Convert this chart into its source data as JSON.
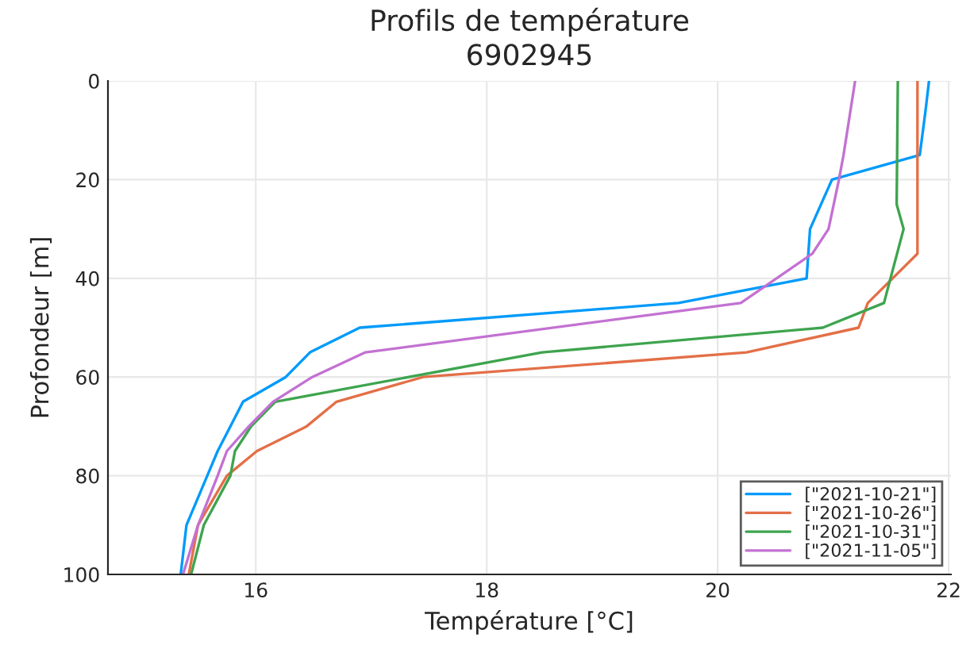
{
  "chart_data": {
    "type": "line",
    "title": "Profils de température",
    "subtitle": "6902945",
    "xlabel": "Température [°C]",
    "ylabel": "Profondeur [m]",
    "series": [
      {
        "name": "[\"2021-10-21\"]",
        "color": "#009afa",
        "x": [
          21.83,
          21.8,
          21.75,
          20.99,
          20.8,
          20.77,
          19.66,
          16.9,
          16.47,
          16.26,
          15.89,
          15.78,
          15.67,
          15.58,
          15.4,
          15.35
        ],
        "values": [
          0,
          6,
          15,
          20,
          30,
          40,
          45,
          50,
          55,
          60,
          65,
          70,
          75,
          80,
          90,
          100
        ]
      },
      {
        "name": "[\"2021-10-26\"]",
        "color": "#e36f47",
        "x": [
          21.73,
          21.73,
          21.3,
          21.22,
          20.25,
          17.45,
          16.7,
          16.44,
          16.01,
          15.75,
          15.5,
          15.42
        ],
        "values": [
          0,
          35,
          45,
          50,
          55,
          60,
          65,
          70,
          75,
          80,
          90,
          100
        ]
      },
      {
        "name": "[\"2021-10-31\"]",
        "color": "#3ea44e",
        "x": [
          21.56,
          21.55,
          21.61,
          21.44,
          20.91,
          18.48,
          16.17,
          15.96,
          15.82,
          15.78,
          15.55,
          15.44
        ],
        "values": [
          0,
          25,
          30,
          45,
          50,
          55,
          65,
          70,
          75,
          80,
          90,
          100
        ]
      },
      {
        "name": "[\"2021-11-05\"]",
        "color": "#c371d2",
        "x": [
          21.19,
          21.09,
          21.05,
          20.96,
          20.82,
          20.2,
          16.95,
          16.49,
          16.15,
          15.94,
          15.75,
          15.67,
          15.5,
          15.37
        ],
        "values": [
          0,
          15,
          20,
          30,
          35,
          45,
          55,
          60,
          65,
          70,
          75,
          80,
          90,
          100
        ]
      }
    ],
    "xlim": [
      14.72,
      22.02
    ],
    "ylim": [
      100,
      0
    ],
    "xticks": [
      16,
      18,
      20,
      22
    ],
    "yticks": [
      0,
      20,
      40,
      60,
      80,
      100
    ],
    "grid": true,
    "legend": "bottom right",
    "line_style": "solid",
    "marker": "none"
  }
}
